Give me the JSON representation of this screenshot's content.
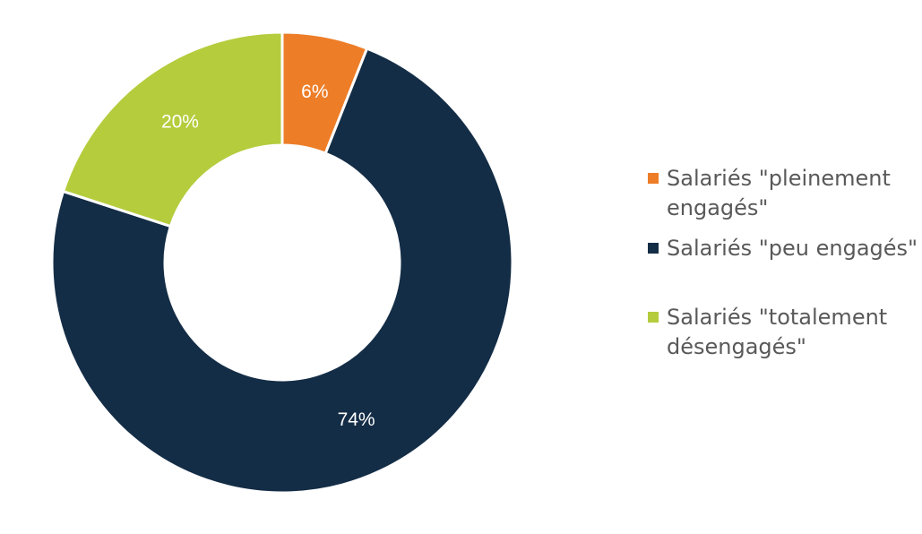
{
  "chart_data": {
    "type": "pie",
    "donut": true,
    "legend_position": "right",
    "series": [
      {
        "name": "Salariés \"pleinement engagés\"",
        "legend_lines": [
          "Salariés \"pleinement",
          "engagés\""
        ],
        "value": 6,
        "label": "6%",
        "color": "#ed7d27"
      },
      {
        "name": "Salariés \"peu engagés\"",
        "legend_lines": [
          "Salariés \"peu engagés\""
        ],
        "value": 74,
        "label": "74%",
        "color": "#142d46"
      },
      {
        "name": "Salariés \"totalement désengagés\"",
        "legend_lines": [
          "Salariés \"totalement",
          "désengagés\""
        ],
        "value": 20,
        "label": "20%",
        "color": "#b5cc3d"
      }
    ]
  }
}
